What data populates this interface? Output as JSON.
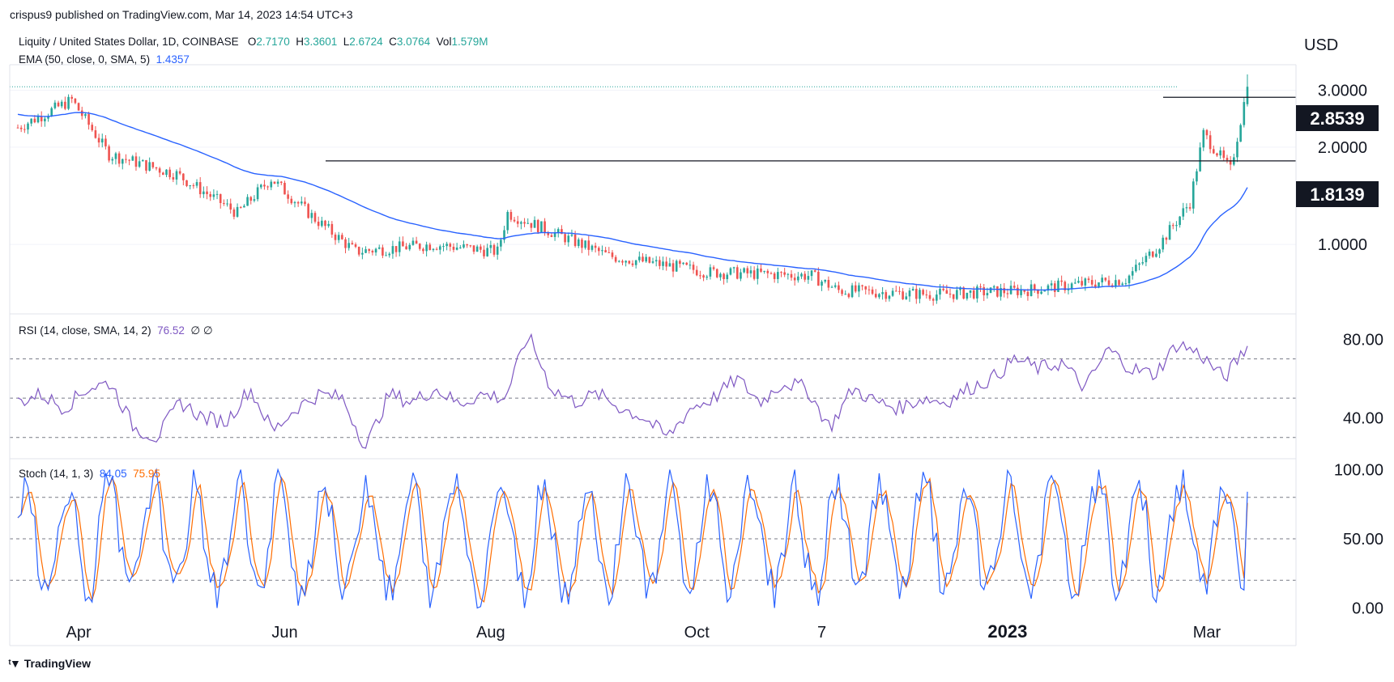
{
  "header": {
    "publisher": "crispus9 published on TradingView.com, Mar 14, 2023 14:54 UTC+3"
  },
  "brand": {
    "name": "TradingView"
  },
  "legend": {
    "symbol": "Liquity / United States Dollar, 1D, COINBASE",
    "open_label": "O",
    "open": "2.7170",
    "high_label": "H",
    "high": "3.3601",
    "low_label": "L",
    "low": "2.6724",
    "close_label": "C",
    "close": "3.0764",
    "vol_label": "Vol",
    "vol": "1.579M",
    "ema_label": "EMA (50, close, 0, SMA, 5)",
    "ema_value": "1.4357",
    "rsi_label": "RSI (14, close, SMA, 14, 2)",
    "rsi_value": "76.52",
    "rsi_extra": "∅  ∅",
    "stoch_label": "Stoch (14, 1, 3)",
    "stoch_k": "84.05",
    "stoch_d": "75.95"
  },
  "colors": {
    "up": "#26a69a",
    "down": "#ef5350",
    "ema": "#2962ff",
    "rsi": "#7e57c2",
    "stoch_k": "#2962ff",
    "stoch_d": "#ff6d00",
    "text": "#131722",
    "grid": "#f0f3fa",
    "border": "#e0e3eb"
  },
  "chart_data": [
    {
      "type": "candlestick",
      "panel": "price",
      "currency_label": "USD",
      "y_ticks": [
        1.0,
        2.0,
        3.0
      ],
      "y_tick_labels": [
        "1.0000",
        "2.0000",
        "3.0000"
      ],
      "ylim": [
        0.5,
        3.5
      ],
      "x_labels": [
        "Apr",
        "Jun",
        "Aug",
        "Oct",
        "7",
        "2023",
        "Mar"
      ],
      "horizontal_levels": [
        {
          "value": 2.8539,
          "label": "2.8539"
        },
        {
          "value": 1.8139,
          "label": "1.8139"
        }
      ],
      "series_ohlc_anchors": [
        {
          "date": "2022-03-14",
          "close": 2.3
        },
        {
          "date": "2022-03-30",
          "close": 2.8
        },
        {
          "date": "2022-04-10",
          "close": 1.9
        },
        {
          "date": "2022-04-30",
          "close": 1.65
        },
        {
          "date": "2022-05-18",
          "close": 1.25
        },
        {
          "date": "2022-05-28",
          "close": 1.6
        },
        {
          "date": "2022-06-10",
          "close": 1.2
        },
        {
          "date": "2022-06-22",
          "close": 0.95
        },
        {
          "date": "2022-07-15",
          "close": 1.0
        },
        {
          "date": "2022-08-03",
          "close": 0.95
        },
        {
          "date": "2022-08-06",
          "close": 1.25
        },
        {
          "date": "2022-09-05",
          "close": 0.92
        },
        {
          "date": "2022-10-05",
          "close": 0.82
        },
        {
          "date": "2022-11-04",
          "close": 0.8
        },
        {
          "date": "2022-11-12",
          "close": 0.72
        },
        {
          "date": "2022-12-10",
          "close": 0.7
        },
        {
          "date": "2023-01-05",
          "close": 0.72
        },
        {
          "date": "2023-02-05",
          "close": 0.78
        },
        {
          "date": "2023-02-15",
          "close": 1.0
        },
        {
          "date": "2023-02-24",
          "close": 1.35
        },
        {
          "date": "2023-02-28",
          "close": 2.2
        },
        {
          "date": "2023-03-08",
          "close": 1.7
        },
        {
          "date": "2023-03-13",
          "close": 3.0764
        }
      ],
      "last_candle": {
        "open": 2.717,
        "high": 3.3601,
        "low": 2.6724,
        "close": 3.0764
      },
      "ema": {
        "name": "EMA (50, close, 0, SMA, 5)",
        "last": 1.4357
      }
    },
    {
      "type": "line",
      "panel": "rsi",
      "y_ticks": [
        40,
        80
      ],
      "y_tick_labels": [
        "40.00",
        "80.00"
      ],
      "bands": [
        30,
        50,
        70
      ],
      "ylim": [
        20,
        90
      ],
      "last": 76.52,
      "anchors": [
        48,
        52,
        45,
        55,
        58,
        35,
        30,
        48,
        40,
        38,
        55,
        33,
        45,
        52,
        50,
        25,
        52,
        48,
        55,
        47,
        52,
        50,
        82,
        55,
        48,
        52,
        45,
        40,
        30,
        45,
        50,
        60,
        48,
        58,
        55,
        35,
        55,
        48,
        45,
        50,
        48,
        55,
        60,
        70,
        65,
        68,
        55,
        75,
        65,
        62,
        78,
        72,
        60,
        76.52
      ]
    },
    {
      "type": "line",
      "panel": "stoch",
      "y_ticks": [
        0,
        50,
        100
      ],
      "y_tick_labels": [
        "0.00",
        "50.00",
        "100.00"
      ],
      "bands": [
        20,
        50,
        80
      ],
      "ylim": [
        -5,
        105
      ],
      "k_last": 84.05,
      "d_last": 75.95
    }
  ]
}
